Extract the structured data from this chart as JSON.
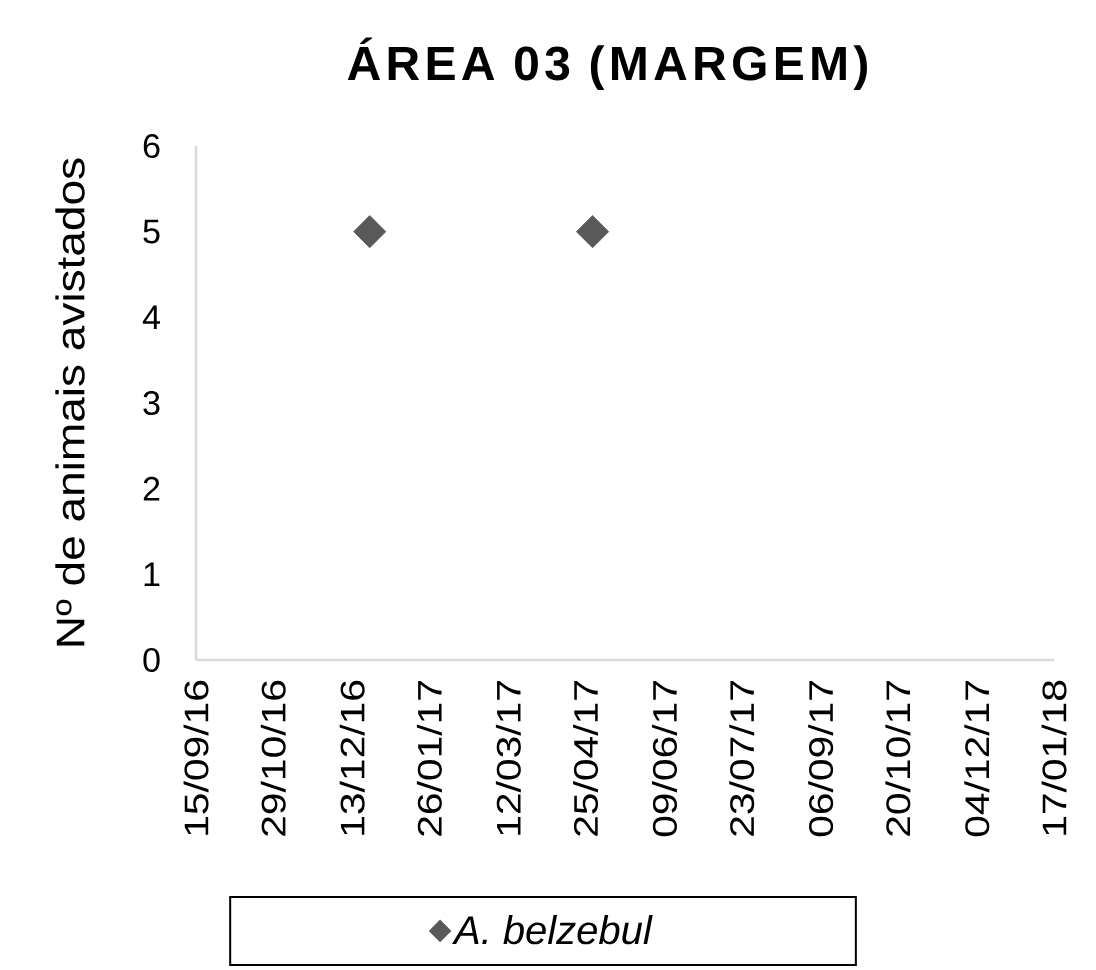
{
  "chart_data": {
    "type": "scatter",
    "title": "ÁREA 03 (MARGEM)",
    "ylabel": "Nº de animais avistados",
    "x": [
      "2016-12-23",
      "2017-04-29"
    ],
    "series": [
      {
        "name": "A. belzebul",
        "color": "#595959",
        "values": [
          5,
          5
        ]
      }
    ],
    "xlim": [
      "2016-09-15",
      "2018-01-17"
    ],
    "xticks": [
      {
        "value": "2016-09-15",
        "label": "15/09/16"
      },
      {
        "value": "2016-10-29",
        "label": "29/10/16"
      },
      {
        "value": "2016-12-13",
        "label": "13/12/16"
      },
      {
        "value": "2017-01-26",
        "label": "26/01/17"
      },
      {
        "value": "2017-03-12",
        "label": "12/03/17"
      },
      {
        "value": "2017-04-25",
        "label": "25/04/17"
      },
      {
        "value": "2017-06-09",
        "label": "09/06/17"
      },
      {
        "value": "2017-07-23",
        "label": "23/07/17"
      },
      {
        "value": "2017-09-06",
        "label": "06/09/17"
      },
      {
        "value": "2017-10-20",
        "label": "20/10/17"
      },
      {
        "value": "2017-12-04",
        "label": "04/12/17"
      },
      {
        "value": "2018-01-17",
        "label": "17/01/18"
      }
    ],
    "ylim": [
      0,
      6
    ],
    "yticks": [
      0,
      1,
      2,
      3,
      4,
      5,
      6
    ],
    "legend": "bottom",
    "marker": "diamond"
  }
}
